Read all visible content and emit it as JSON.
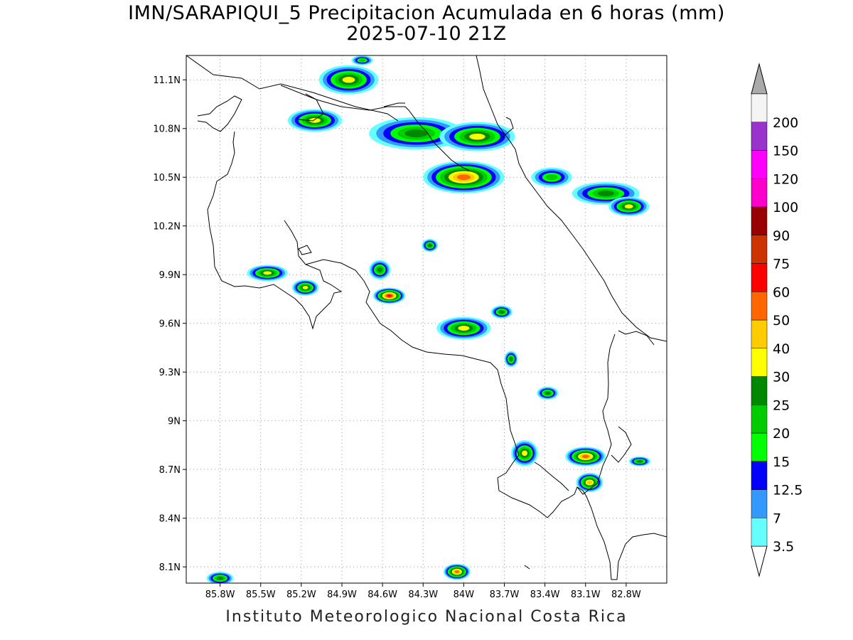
{
  "title_line1": "IMN/SARAPIQUI_5 Precipitacion Acumulada en 6 horas (mm)",
  "title_line2": "2025-07-10 21Z",
  "credit": "Instituto Meteorologico Nacional Costa Rica",
  "map": {
    "lon_range": [
      -86.05,
      -82.5
    ],
    "lat_range": [
      8.0,
      11.25
    ],
    "lat_ticks": [
      {
        "value": 11.1,
        "label": "11.1N"
      },
      {
        "value": 10.8,
        "label": "10.8N"
      },
      {
        "value": 10.5,
        "label": "10.5N"
      },
      {
        "value": 10.2,
        "label": "10.2N"
      },
      {
        "value": 9.9,
        "label": "9.9N"
      },
      {
        "value": 9.6,
        "label": "9.6N"
      },
      {
        "value": 9.3,
        "label": "9.3N"
      },
      {
        "value": 9.0,
        "label": "9N"
      },
      {
        "value": 8.7,
        "label": "8.7N"
      },
      {
        "value": 8.4,
        "label": "8.4N"
      },
      {
        "value": 8.1,
        "label": "8.1N"
      }
    ],
    "lon_ticks": [
      {
        "value": -85.8,
        "label": "85.8W"
      },
      {
        "value": -85.5,
        "label": "85.5W"
      },
      {
        "value": -85.2,
        "label": "85.2W"
      },
      {
        "value": -84.9,
        "label": "84.9W"
      },
      {
        "value": -84.6,
        "label": "84.6W"
      },
      {
        "value": -84.3,
        "label": "84.3W"
      },
      {
        "value": -84.0,
        "label": "84W"
      },
      {
        "value": -83.7,
        "label": "83.7W"
      },
      {
        "value": -83.4,
        "label": "83.4W"
      },
      {
        "value": -83.1,
        "label": "83.1W"
      },
      {
        "value": -82.8,
        "label": "82.8W"
      }
    ],
    "grid": true,
    "precip_cells": [
      {
        "lon": -84.85,
        "lat": 11.1,
        "rx": 0.22,
        "ry": 0.09,
        "level": 30
      },
      {
        "lon": -84.75,
        "lat": 11.22,
        "rx": 0.08,
        "ry": 0.03,
        "level": 20
      },
      {
        "lon": -85.1,
        "lat": 10.85,
        "rx": 0.2,
        "ry": 0.07,
        "level": 30
      },
      {
        "lon": -84.35,
        "lat": 10.77,
        "rx": 0.35,
        "ry": 0.1,
        "level": 25
      },
      {
        "lon": -83.9,
        "lat": 10.75,
        "rx": 0.28,
        "ry": 0.09,
        "level": 30
      },
      {
        "lon": -84.0,
        "lat": 10.5,
        "rx": 0.3,
        "ry": 0.1,
        "level": 50
      },
      {
        "lon": -83.35,
        "lat": 10.5,
        "rx": 0.15,
        "ry": 0.06,
        "level": 20
      },
      {
        "lon": -82.95,
        "lat": 10.4,
        "rx": 0.25,
        "ry": 0.07,
        "level": 25
      },
      {
        "lon": -82.78,
        "lat": 10.32,
        "rx": 0.15,
        "ry": 0.06,
        "level": 30
      },
      {
        "lon": -85.45,
        "lat": 9.91,
        "rx": 0.15,
        "ry": 0.05,
        "level": 30
      },
      {
        "lon": -85.17,
        "lat": 9.82,
        "rx": 0.1,
        "ry": 0.05,
        "level": 30
      },
      {
        "lon": -84.62,
        "lat": 9.93,
        "rx": 0.08,
        "ry": 0.06,
        "level": 25
      },
      {
        "lon": -84.55,
        "lat": 9.77,
        "rx": 0.12,
        "ry": 0.05,
        "level": 60
      },
      {
        "lon": -84.25,
        "lat": 10.08,
        "rx": 0.06,
        "ry": 0.04,
        "level": 25
      },
      {
        "lon": -84.0,
        "lat": 9.57,
        "rx": 0.2,
        "ry": 0.07,
        "level": 30
      },
      {
        "lon": -83.72,
        "lat": 9.67,
        "rx": 0.08,
        "ry": 0.04,
        "level": 25
      },
      {
        "lon": -83.65,
        "lat": 9.38,
        "rx": 0.05,
        "ry": 0.05,
        "level": 25
      },
      {
        "lon": -83.38,
        "lat": 9.17,
        "rx": 0.08,
        "ry": 0.04,
        "level": 25
      },
      {
        "lon": -83.55,
        "lat": 8.8,
        "rx": 0.1,
        "ry": 0.08,
        "level": 30
      },
      {
        "lon": -83.1,
        "lat": 8.78,
        "rx": 0.15,
        "ry": 0.06,
        "level": 50
      },
      {
        "lon": -83.07,
        "lat": 8.62,
        "rx": 0.1,
        "ry": 0.06,
        "level": 40
      },
      {
        "lon": -82.7,
        "lat": 8.75,
        "rx": 0.08,
        "ry": 0.03,
        "level": 25
      },
      {
        "lon": -84.05,
        "lat": 8.07,
        "rx": 0.1,
        "ry": 0.05,
        "level": 50
      },
      {
        "lon": -85.8,
        "lat": 8.03,
        "rx": 0.1,
        "ry": 0.04,
        "level": 25
      }
    ]
  },
  "legend": {
    "levels": [
      {
        "label": "3.5",
        "color": "#66ffff"
      },
      {
        "label": "7",
        "color": "#3399ff"
      },
      {
        "label": "12.5",
        "color": "#0000ff"
      },
      {
        "label": "15",
        "color": "#00ff00"
      },
      {
        "label": "20",
        "color": "#00cc00"
      },
      {
        "label": "25",
        "color": "#008800"
      },
      {
        "label": "30",
        "color": "#ffff00"
      },
      {
        "label": "40",
        "color": "#ffcc00"
      },
      {
        "label": "50",
        "color": "#ff6600"
      },
      {
        "label": "60",
        "color": "#ff0000"
      },
      {
        "label": "75",
        "color": "#cc3300"
      },
      {
        "label": "90",
        "color": "#990000"
      },
      {
        "label": "100",
        "color": "#ff00cc"
      },
      {
        "label": "120",
        "color": "#ff00ff"
      },
      {
        "label": "150",
        "color": "#9933cc"
      },
      {
        "label": "200",
        "color": "#f4f4f4"
      }
    ],
    "under_color": "#ffffff",
    "over_color": "#aaaaaa"
  }
}
